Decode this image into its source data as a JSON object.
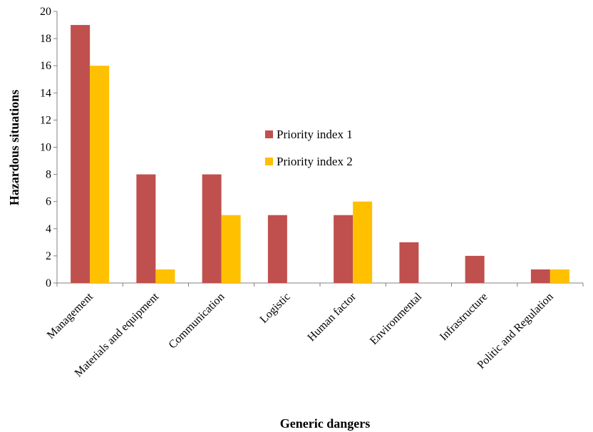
{
  "chart_data": {
    "type": "bar",
    "categories": [
      "Management",
      "Materials and equipment",
      "Communication",
      "Logistic",
      "Human factor",
      "Environmental",
      "Infrastructure",
      "Politic and Regulation"
    ],
    "series": [
      {
        "name": "Priority index 1",
        "color": "#C0504D",
        "values": [
          19,
          8,
          8,
          5,
          5,
          3,
          2,
          1
        ]
      },
      {
        "name": "Priority index 2",
        "color": "#FFC000",
        "values": [
          16,
          1,
          5,
          0,
          6,
          0,
          0,
          1
        ]
      }
    ],
    "xlabel": "Generic dangers",
    "ylabel": "Hazardous situations",
    "ylim": [
      0,
      20
    ],
    "yticks": [
      0,
      2,
      4,
      6,
      8,
      10,
      12,
      14,
      16,
      18,
      20
    ],
    "grid": false,
    "legend_position": "center"
  }
}
